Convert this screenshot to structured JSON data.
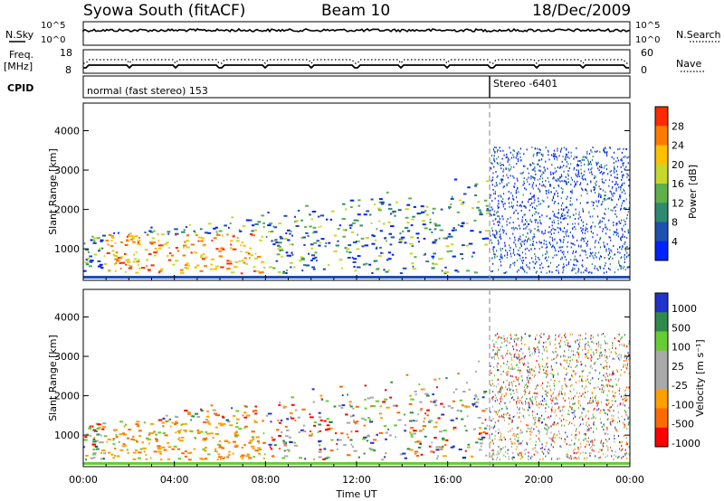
{
  "header": {
    "station": "Syowa South (fitACF)",
    "beam": "Beam 10",
    "date": "18/Dec/2009"
  },
  "labels": {
    "nsky": "N.Sky",
    "nsearch": "N.Search",
    "freq": "Freq.",
    "freq_unit": "[MHz]",
    "nave": "Nave",
    "cpid": "CPID",
    "cpid_mode1": "normal (fast stereo) 153",
    "cpid_mode2": "Stereo -6401",
    "time_axis": "Time UT",
    "range_axis": "Slant Range [km]",
    "power_label": "Power [dB]",
    "velocity_label": "Velocity [m s⁻¹]"
  },
  "colors": {
    "power_scale": [
      "#0022ff",
      "#1f4fb0",
      "#2e8a6e",
      "#5fb04a",
      "#c6d92a",
      "#ffc000",
      "#ff7a00",
      "#ff2a00"
    ],
    "velocity_scale": [
      "#ff0000",
      "#ff6a00",
      "#ffa000",
      "#aaaaaa",
      "#aaaaaa",
      "#66cc33",
      "#2e8a4a",
      "#2233cc"
    ]
  },
  "chart_data": [
    {
      "type": "line",
      "name": "noise",
      "ylabels_left": [
        "10^5",
        "10^0"
      ],
      "ylabels_right": [
        "10^5",
        "10^0"
      ]
    },
    {
      "type": "line",
      "name": "freq-nave",
      "yticks_left": [
        "18",
        "8"
      ],
      "yticks_right": [
        "60",
        "0"
      ]
    },
    {
      "type": "heatmap",
      "name": "power",
      "x_ticks": [
        "00:00",
        "04:00",
        "08:00",
        "12:00",
        "16:00",
        "20:00",
        "00:00"
      ],
      "y_ticks": [
        "4000",
        "3000",
        "2000",
        "1000"
      ],
      "y_values": [
        4000,
        3000,
        2000,
        1000
      ],
      "ylim": [
        200,
        4700
      ],
      "colorbar_ticks": [
        "28",
        "24",
        "20",
        "16",
        "12",
        "8",
        "4"
      ],
      "colorbar_values": [
        28,
        24,
        20,
        16,
        12,
        8,
        4
      ]
    },
    {
      "type": "heatmap",
      "name": "velocity",
      "x_ticks": [
        "00:00",
        "04:00",
        "08:00",
        "12:00",
        "16:00",
        "20:00",
        "00:00"
      ],
      "y_ticks": [
        "4000",
        "3000",
        "2000",
        "1000"
      ],
      "y_values": [
        4000,
        3000,
        2000,
        1000
      ],
      "ylim": [
        200,
        4700
      ],
      "colorbar_ticks": [
        "1000",
        "500",
        "100",
        "25",
        "-25",
        "-100",
        "-500",
        "-1000"
      ]
    }
  ]
}
